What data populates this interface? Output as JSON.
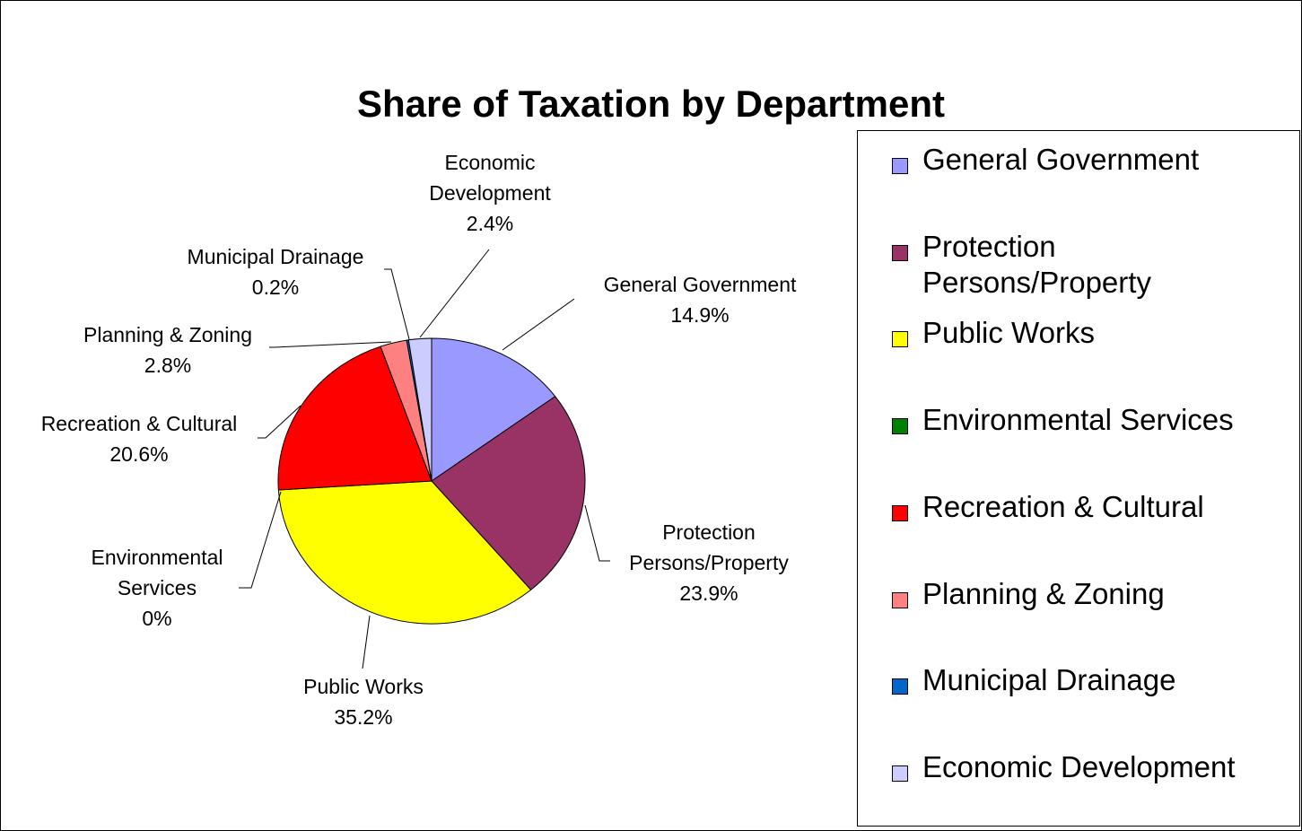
{
  "chart_data": {
    "type": "pie",
    "title": "Share of Taxation by Department",
    "slices": [
      {
        "name": "General Government",
        "label": "General Government",
        "value": 14.9,
        "pct_label": "14.9%",
        "color": "#9999FF"
      },
      {
        "name": "Protection Persons/Property",
        "label": "Protection\nPersons/Property",
        "value": 23.9,
        "pct_label": "23.9%",
        "color": "#993366"
      },
      {
        "name": "Public Works",
        "label": "Public Works",
        "value": 35.2,
        "pct_label": "35.2%",
        "color": "#FFFF00"
      },
      {
        "name": "Environmental Services",
        "label": "Environmental\nServices",
        "value": 0,
        "pct_label": "0%",
        "color": "#008000"
      },
      {
        "name": "Recreation & Cultural",
        "label": "Recreation & Cultural",
        "value": 20.6,
        "pct_label": "20.6%",
        "color": "#FF0000"
      },
      {
        "name": "Planning & Zoning",
        "label": "Planning & Zoning",
        "value": 2.8,
        "pct_label": "2.8%",
        "color": "#FF8080"
      },
      {
        "name": "Municipal Drainage",
        "label": "Municipal Drainage",
        "value": 0.2,
        "pct_label": "0.2%",
        "color": "#0066CC"
      },
      {
        "name": "Economic Development",
        "label": "Economic\nDevelopment",
        "value": 2.4,
        "pct_label": "2.4%",
        "color": "#CCCCFF"
      }
    ],
    "legend": {
      "placement": "right",
      "entries": [
        "General Government",
        "Protection\nPersons/Property",
        "Public Works",
        "Environmental Services",
        "Recreation & Cultural",
        "Planning & Zoning",
        "Municipal Drainage",
        "Economic Development"
      ]
    }
  }
}
